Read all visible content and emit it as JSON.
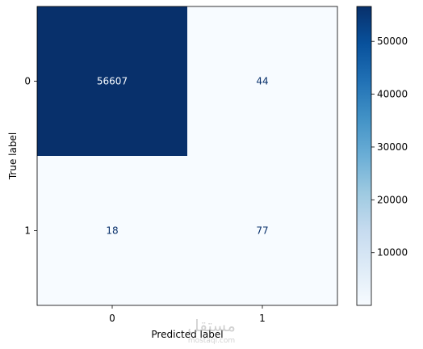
{
  "chart_data": {
    "type": "heatmap",
    "title": "",
    "xlabel": "Predicted label",
    "ylabel": "True label",
    "x_categories": [
      "0",
      "1"
    ],
    "y_categories": [
      "0",
      "1"
    ],
    "matrix": [
      [
        56607,
        44
      ],
      [
        18,
        77
      ]
    ],
    "colormap": "Blues",
    "vmin": 18,
    "vmax": 56607,
    "colorbar": {
      "ticks": [
        10000,
        20000,
        30000,
        40000,
        50000
      ],
      "tick_labels": [
        "10000",
        "20000",
        "30000",
        "40000",
        "50000"
      ]
    },
    "grid": false
  },
  "colors": {
    "cmap_low": "#f7fbff",
    "cmap_high": "#08306b",
    "text_on_dark": "#f7fbff",
    "text_on_light": "#08306b"
  },
  "watermark": {
    "arabic": "مستقل",
    "latin": "mostaql.com"
  }
}
